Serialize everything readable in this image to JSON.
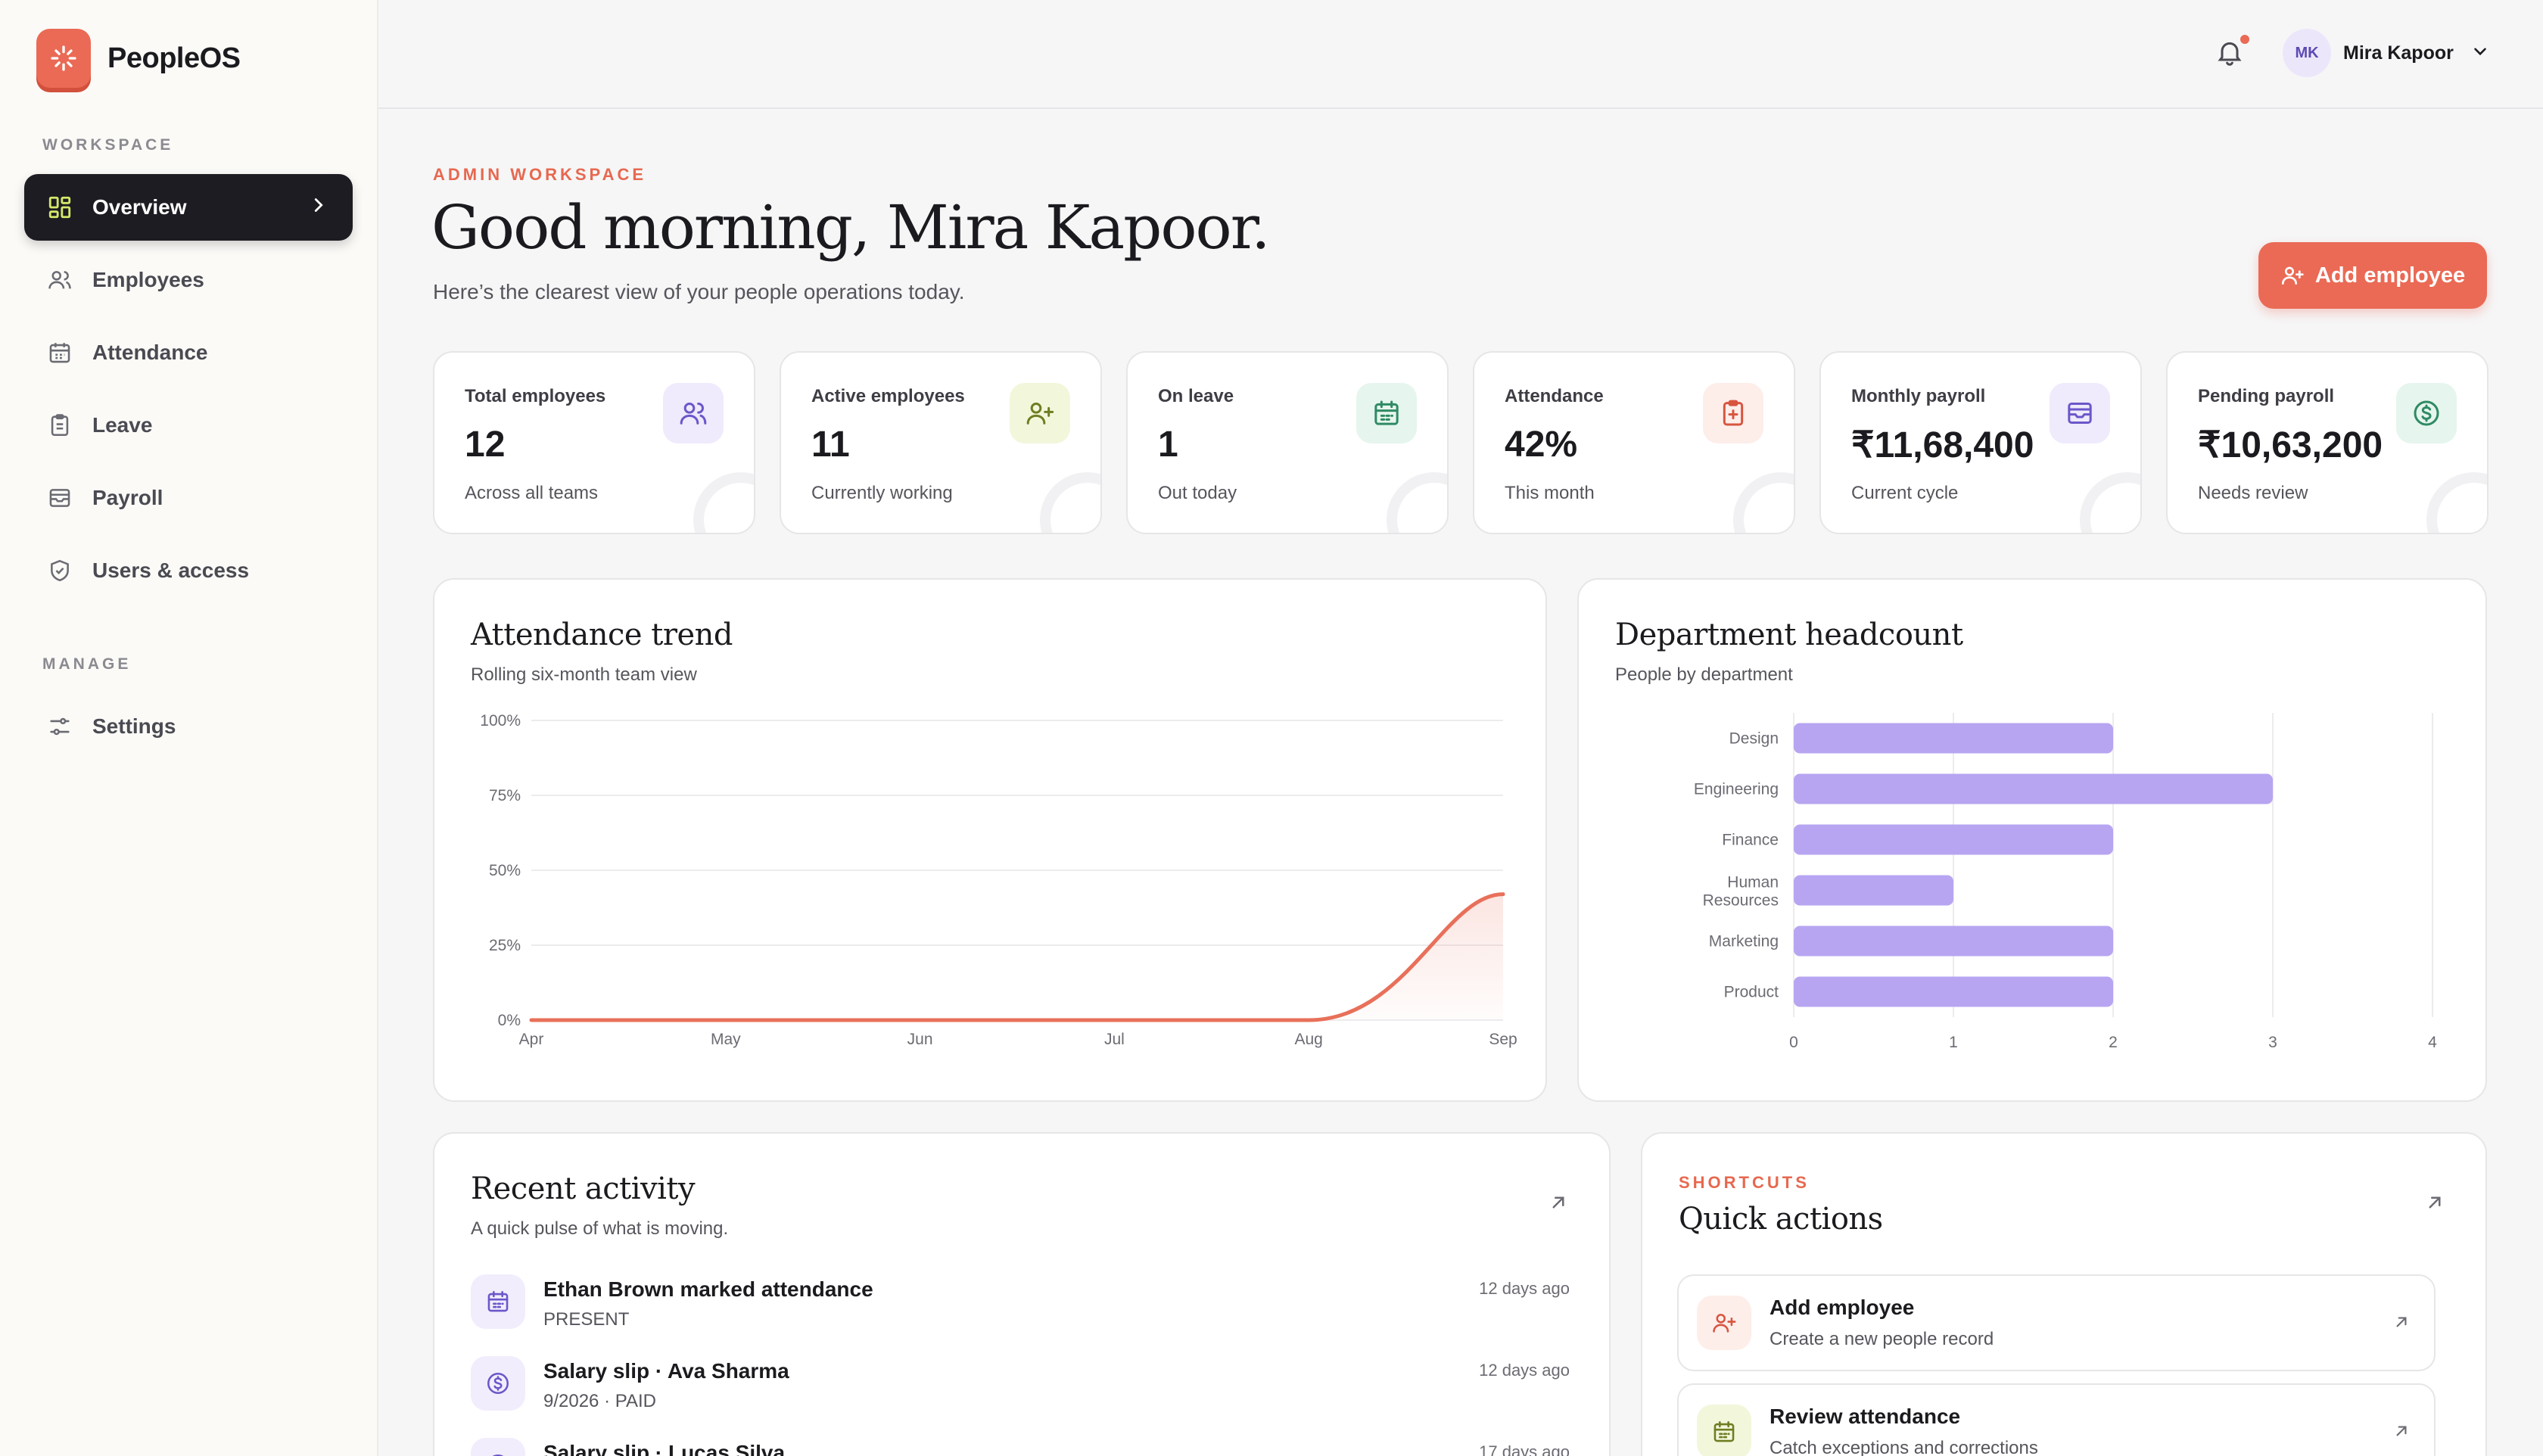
{
  "brand": {
    "name": "PeopleOS"
  },
  "sidebar": {
    "workspace_label": "WORKSPACE",
    "manage_label": "MANAGE",
    "items": [
      {
        "label": "Overview",
        "icon": "grid-icon",
        "active": true
      },
      {
        "label": "Employees",
        "icon": "users-icon"
      },
      {
        "label": "Attendance",
        "icon": "calendar-icon"
      },
      {
        "label": "Leave",
        "icon": "clipboard-icon"
      },
      {
        "label": "Payroll",
        "icon": "wallet-icon"
      },
      {
        "label": "Users & access",
        "icon": "shield-icon"
      }
    ],
    "manage_items": [
      {
        "label": "Settings",
        "icon": "sliders-icon"
      }
    ]
  },
  "topbar": {
    "user": {
      "initials": "MK",
      "name": "Mira Kapoor"
    },
    "has_notification": true
  },
  "header": {
    "eyebrow": "ADMIN WORKSPACE",
    "greeting": "Good morning, Mira Kapoor.",
    "subtitle": "Here’s the clearest view of your people operations today.",
    "add_button": "Add employee"
  },
  "stats": [
    {
      "label": "Total employees",
      "value": "12",
      "sub": "Across all teams",
      "icon": "users-icon",
      "bg": "#efeafc",
      "fg": "#6b57c9"
    },
    {
      "label": "Active employees",
      "value": "11",
      "sub": "Currently working",
      "icon": "user-plus-icon",
      "bg": "#f2f7dc",
      "fg": "#6f7d22"
    },
    {
      "label": "On leave",
      "value": "1",
      "sub": "Out today",
      "icon": "calendar-icon",
      "bg": "#e6f5ee",
      "fg": "#2f8a63"
    },
    {
      "label": "Attendance",
      "value": "42%",
      "sub": "This month",
      "icon": "clipboard-plus-icon",
      "bg": "#fdeeea",
      "fg": "#d8553f"
    },
    {
      "label": "Monthly payroll",
      "value": "₹11,68,400",
      "sub": "Current cycle",
      "icon": "wallet-icon",
      "bg": "#efeafc",
      "fg": "#6b57c9"
    },
    {
      "label": "Pending payroll",
      "value": "₹10,63,200",
      "sub": "Needs review",
      "icon": "dollar-circle-icon",
      "bg": "#e6f5ee",
      "fg": "#2f8a63"
    }
  ],
  "attendance": {
    "title": "Attendance trend",
    "subtitle": "Rolling six-month team view"
  },
  "department": {
    "title": "Department headcount",
    "subtitle": "People by department"
  },
  "chart_data": [
    {
      "type": "area",
      "title": "Attendance trend",
      "x": [
        "Apr",
        "May",
        "Jun",
        "Jul",
        "Aug",
        "Sep"
      ],
      "values": [
        0,
        0,
        0,
        0,
        0,
        42
      ],
      "yticks": [
        "0%",
        "25%",
        "50%",
        "75%",
        "100%"
      ],
      "ylim": [
        0,
        100
      ],
      "color": "#e8705a",
      "grid": true
    },
    {
      "type": "bar",
      "orientation": "horizontal",
      "title": "Department headcount",
      "categories": [
        "Design",
        "Engineering",
        "Finance",
        "Human Resources",
        "Marketing",
        "Product"
      ],
      "values": [
        2,
        3,
        2,
        1,
        2,
        2
      ],
      "xticks": [
        "0",
        "1",
        "2",
        "3",
        "4"
      ],
      "xlim": [
        0,
        4
      ],
      "color": "#b7a5f2",
      "grid": true
    }
  ],
  "activity": {
    "title": "Recent activity",
    "subtitle": "A quick pulse of what is moving.",
    "items": [
      {
        "title": "Ethan Brown marked attendance",
        "sub": "PRESENT",
        "time": "12 days ago",
        "icon": "calendar-icon"
      },
      {
        "title": "Salary slip · Ava Sharma",
        "sub": "9/2026 · PAID",
        "time": "12 days ago",
        "icon": "dollar-circle-icon"
      },
      {
        "title": "Salary slip · Lucas Silva",
        "sub": "",
        "time": "17 days ago",
        "icon": "dollar-circle-icon"
      }
    ]
  },
  "quick": {
    "eyebrow": "SHORTCUTS",
    "title": "Quick actions",
    "items": [
      {
        "title": "Add employee",
        "sub": "Create a new people record",
        "icon": "user-plus-icon",
        "bg": "#fdeeea",
        "fg": "#d8553f"
      },
      {
        "title": "Review attendance",
        "sub": "Catch exceptions and corrections",
        "icon": "calendar-icon",
        "bg": "#f2f7dc",
        "fg": "#6f7d22"
      }
    ]
  }
}
